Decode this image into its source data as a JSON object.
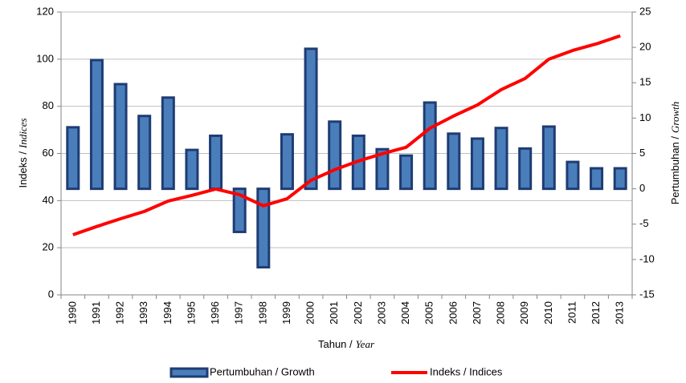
{
  "chart_data": {
    "type": "bar",
    "categories": [
      "1990",
      "1991",
      "1992",
      "1993",
      "1994",
      "1995",
      "1996",
      "1997",
      "1998",
      "1999",
      "2000",
      "2001",
      "2002",
      "2003",
      "2004",
      "2005",
      "2006",
      "2007",
      "2008",
      "2009",
      "2010",
      "2011",
      "2012",
      "2013"
    ],
    "series": [
      {
        "name": "Pertumbuhan / Growth",
        "type": "bar",
        "axis": "y2",
        "color": "#4a7ebb",
        "edge": "#1f3c73",
        "values": [
          8.7,
          18.2,
          14.8,
          10.3,
          12.9,
          5.5,
          7.5,
          -6.1,
          -11.1,
          7.7,
          19.8,
          9.5,
          7.5,
          5.6,
          4.7,
          12.2,
          7.8,
          7.1,
          8.6,
          5.7,
          8.8,
          3.8,
          2.9,
          2.9
        ]
      },
      {
        "name": "Indeks / Indices",
        "type": "line",
        "axis": "y",
        "color": "#ff0000",
        "values": [
          25.5,
          29,
          32.3,
          35.4,
          39.8,
          42.2,
          44.9,
          42.5,
          37.8,
          40.8,
          48.6,
          53.1,
          56.8,
          59.9,
          62.6,
          70.7,
          75.9,
          80.6,
          87.1,
          91.8,
          100,
          103.7,
          106.5,
          109.9
        ]
      }
    ],
    "x_label": [
      "Tahun /",
      "Year"
    ],
    "y_label": [
      "Indeks /",
      "Indices"
    ],
    "y2_label": [
      "Pertumbuhan /",
      "Growth"
    ],
    "ylim": [
      0,
      120
    ],
    "yticks": [
      0,
      20,
      40,
      60,
      80,
      100,
      120
    ],
    "y2lim": [
      -15,
      25
    ],
    "y2ticks": [
      -15,
      -10,
      -5,
      0,
      5,
      10,
      15,
      20,
      25
    ],
    "grid": true,
    "legend": "bottom"
  }
}
